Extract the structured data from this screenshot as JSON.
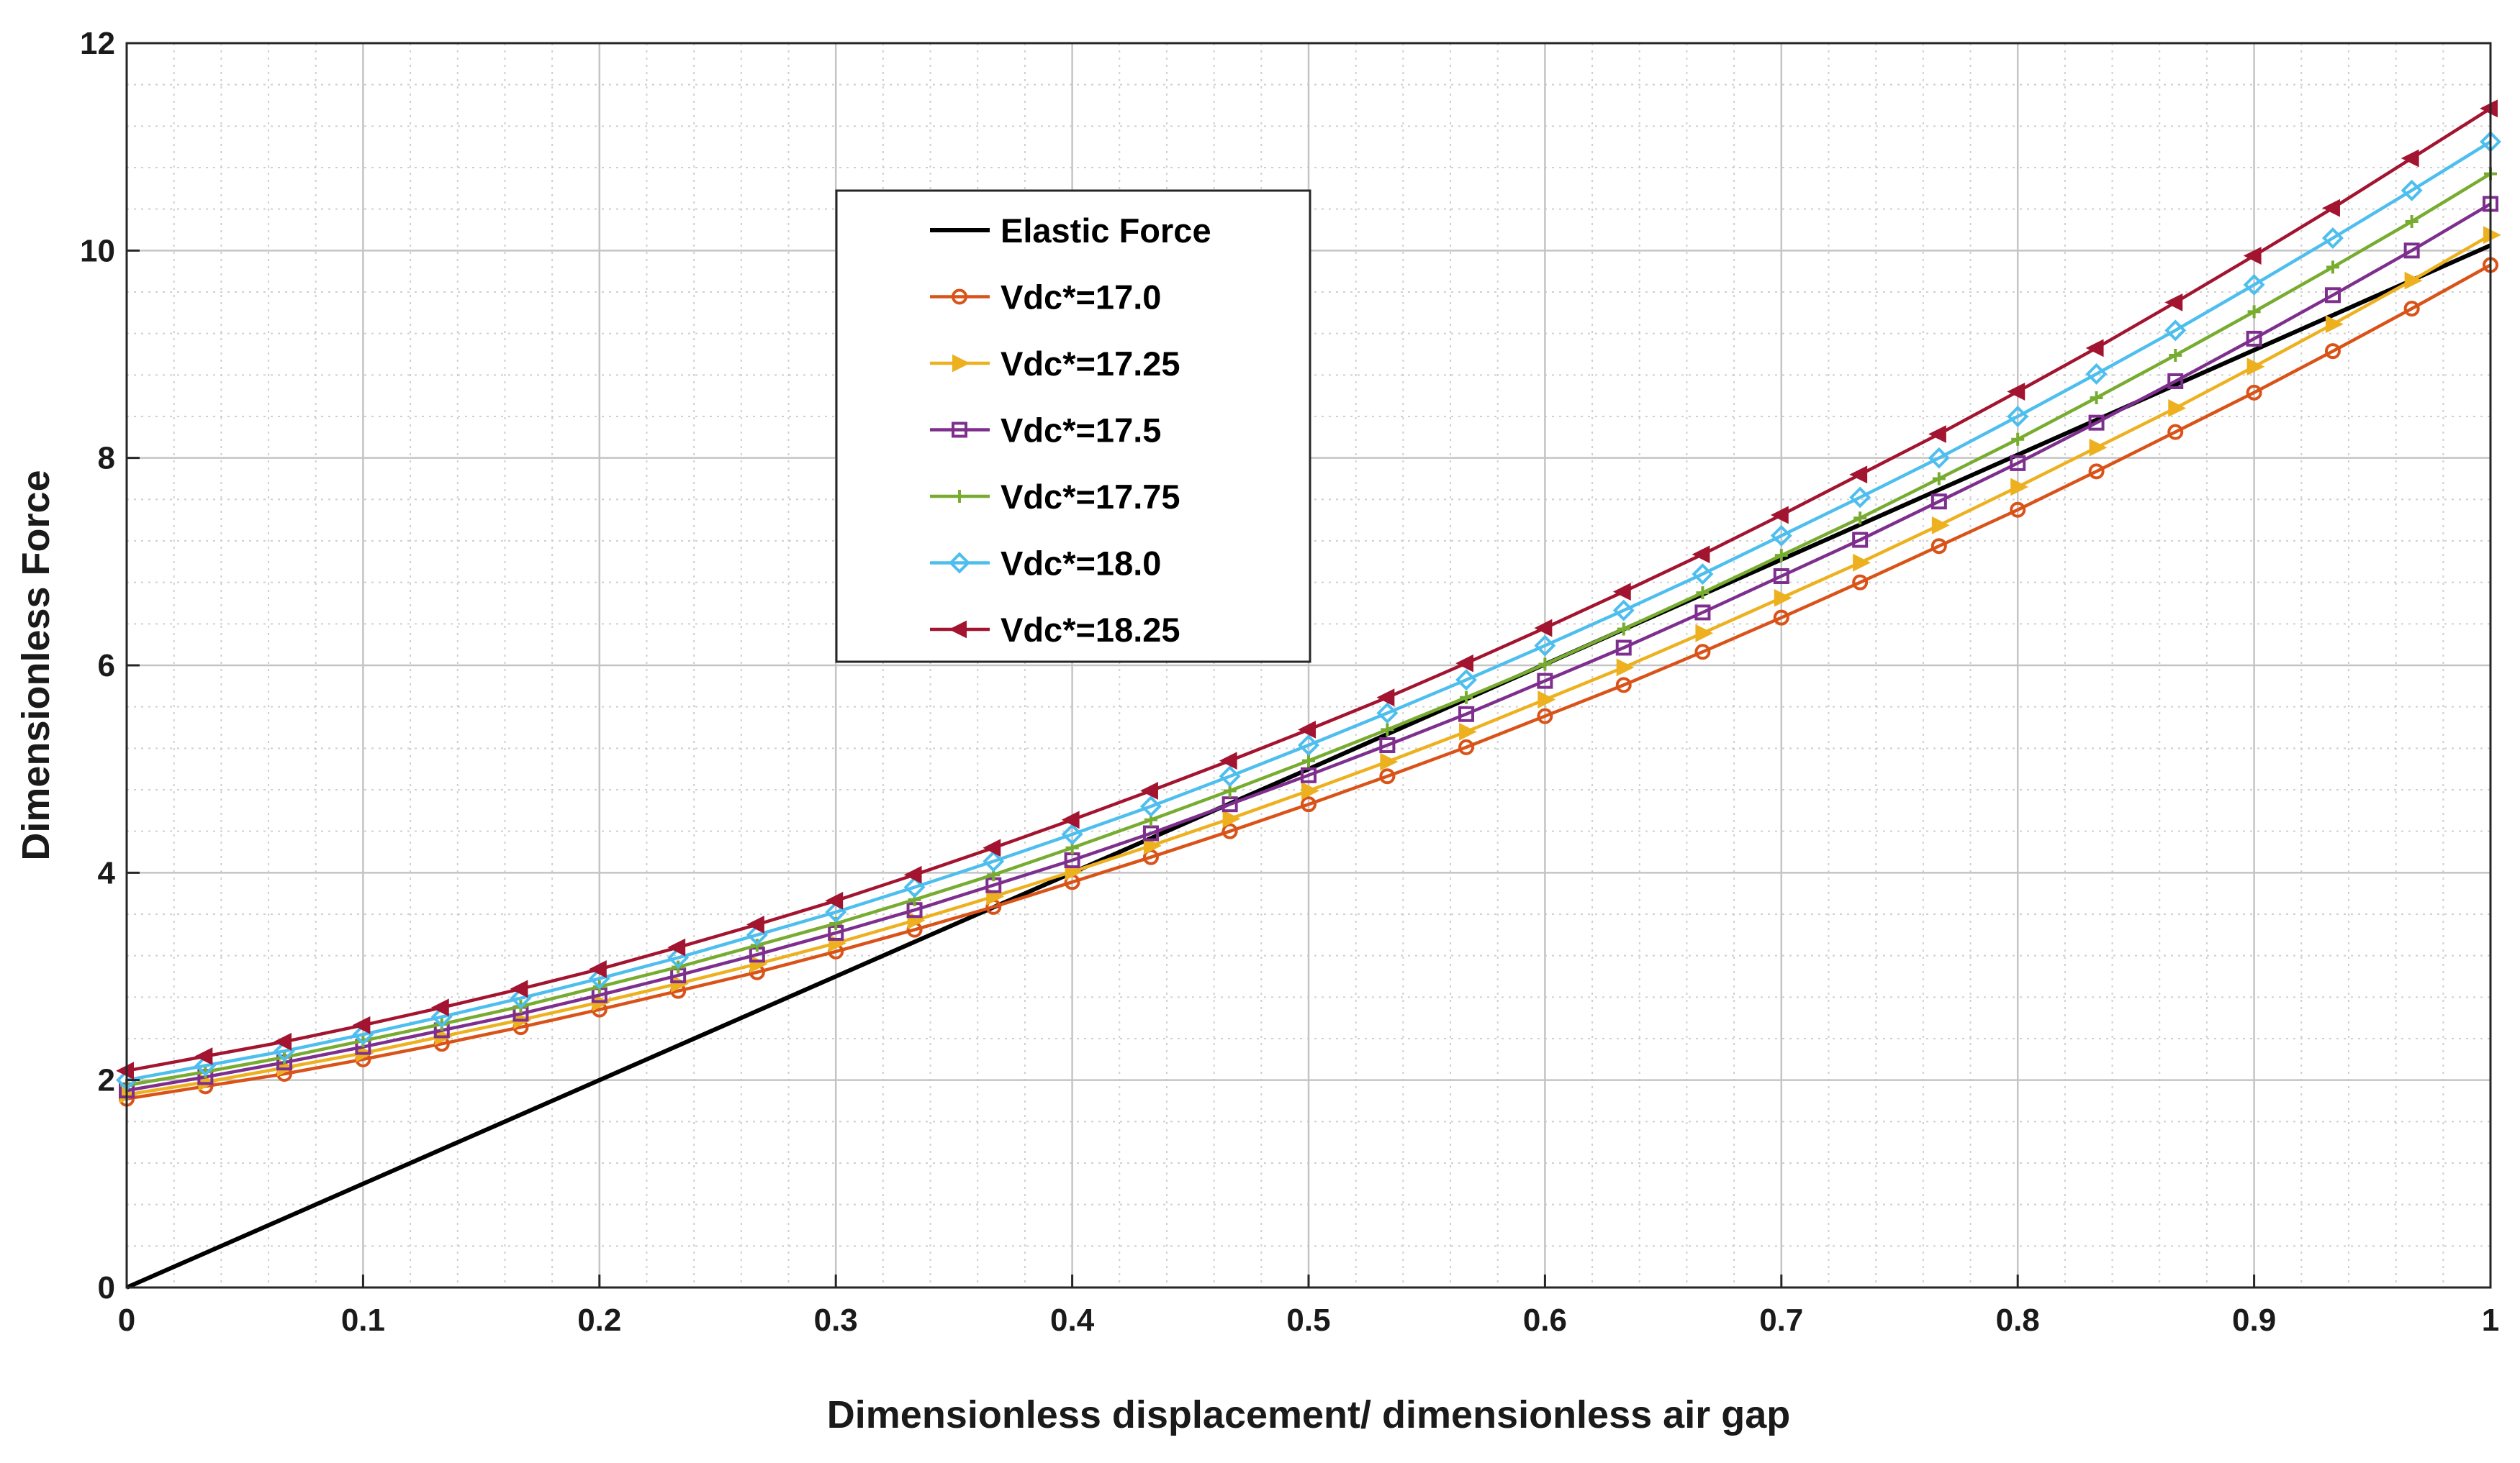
{
  "chart_data": {
    "type": "line",
    "title": "",
    "xlabel": "Dimensionless displacement/ dimensionless air gap",
    "ylabel": "Dimensionless Force",
    "xlim": [
      0,
      1
    ],
    "ylim": [
      0,
      12
    ],
    "xticks": [
      "0",
      "0.1",
      "0.2",
      "0.3",
      "0.4",
      "0.5",
      "0.6",
      "0.7",
      "0.8",
      "0.9",
      "1"
    ],
    "yticks": [
      "0",
      "2",
      "4",
      "6",
      "8",
      "10",
      "12"
    ],
    "grid": true,
    "minor_grid": true,
    "legend_position": "upper-center",
    "x": [
      0,
      0.0333,
      0.0667,
      0.1,
      0.1333,
      0.1667,
      0.2,
      0.2333,
      0.2667,
      0.3,
      0.3333,
      0.3667,
      0.4,
      0.4333,
      0.4667,
      0.5,
      0.5333,
      0.5667,
      0.6,
      0.6333,
      0.6667,
      0.7,
      0.7333,
      0.7667,
      0.8,
      0.8333,
      0.8667,
      0.9,
      0.9333,
      0.9667,
      1
    ],
    "series": [
      {
        "name": "Elastic Force",
        "color": "#000000",
        "marker": "none",
        "x": [
          0,
          0.5,
          1
        ],
        "values": [
          0,
          5.0,
          10.05
        ]
      },
      {
        "name": "Vdc*=17.0",
        "color": "#D95319",
        "marker": "circle",
        "values": [
          1.82,
          1.94,
          2.06,
          2.2,
          2.35,
          2.51,
          2.68,
          2.86,
          3.04,
          3.24,
          3.45,
          3.67,
          3.91,
          4.15,
          4.4,
          4.66,
          4.93,
          5.21,
          5.51,
          5.81,
          6.13,
          6.46,
          6.8,
          7.15,
          7.5,
          7.87,
          8.25,
          8.63,
          9.03,
          9.44,
          9.86
        ]
      },
      {
        "name": "Vdc*=17.25",
        "color": "#EDB120",
        "marker": "triangle-right",
        "values": [
          1.86,
          1.98,
          2.12,
          2.26,
          2.42,
          2.58,
          2.75,
          2.93,
          3.12,
          3.32,
          3.54,
          3.77,
          4.01,
          4.26,
          4.52,
          4.79,
          5.07,
          5.36,
          5.67,
          5.98,
          6.31,
          6.65,
          6.99,
          7.35,
          7.72,
          8.1,
          8.48,
          8.88,
          9.29,
          9.71,
          10.15
        ]
      },
      {
        "name": "Vdc*=17.5",
        "color": "#7E2F8E",
        "marker": "square",
        "values": [
          1.9,
          2.03,
          2.17,
          2.32,
          2.48,
          2.64,
          2.82,
          3.01,
          3.21,
          3.42,
          3.64,
          3.88,
          4.12,
          4.38,
          4.66,
          4.94,
          5.23,
          5.53,
          5.85,
          6.17,
          6.51,
          6.86,
          7.21,
          7.58,
          7.95,
          8.34,
          8.74,
          9.15,
          9.57,
          10.0,
          10.45
        ]
      },
      {
        "name": "Vdc*=17.75",
        "color": "#77AC30",
        "marker": "plus",
        "values": [
          1.95,
          2.08,
          2.22,
          2.38,
          2.54,
          2.71,
          2.9,
          3.09,
          3.3,
          3.51,
          3.74,
          3.98,
          4.24,
          4.51,
          4.79,
          5.08,
          5.38,
          5.69,
          6.01,
          6.35,
          6.7,
          7.06,
          7.42,
          7.8,
          8.18,
          8.58,
          8.99,
          9.41,
          9.84,
          10.28,
          10.74
        ]
      },
      {
        "name": "Vdc*=18.0",
        "color": "#4DBEEE",
        "marker": "diamond",
        "values": [
          2.0,
          2.14,
          2.28,
          2.44,
          2.61,
          2.79,
          2.98,
          3.18,
          3.4,
          3.62,
          3.86,
          4.11,
          4.37,
          4.64,
          4.93,
          5.23,
          5.54,
          5.86,
          6.19,
          6.53,
          6.88,
          7.25,
          7.62,
          8.0,
          8.4,
          8.81,
          9.23,
          9.67,
          10.12,
          10.58,
          11.05
        ]
      },
      {
        "name": "Vdc*=18.25",
        "color": "#A2142F",
        "marker": "triangle-left",
        "values": [
          2.09,
          2.23,
          2.37,
          2.53,
          2.7,
          2.88,
          3.07,
          3.28,
          3.5,
          3.73,
          3.98,
          4.24,
          4.51,
          4.79,
          5.08,
          5.38,
          5.69,
          6.02,
          6.36,
          6.71,
          7.07,
          7.45,
          7.84,
          8.23,
          8.64,
          9.06,
          9.5,
          9.95,
          10.41,
          10.89,
          11.37
        ]
      }
    ]
  }
}
